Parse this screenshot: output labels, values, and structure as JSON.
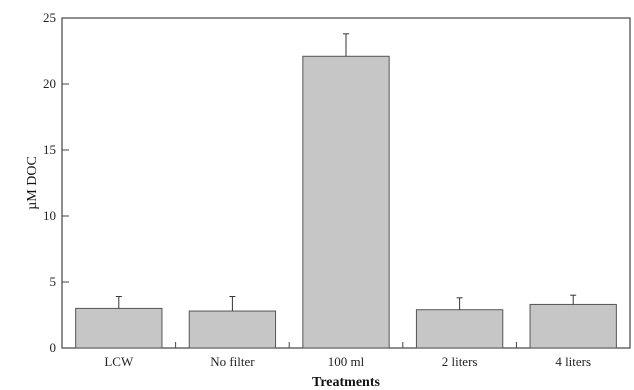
{
  "chart_data": {
    "type": "bar",
    "categories": [
      "LCW",
      "No filter",
      "100 ml",
      "2 liters",
      "4 liters"
    ],
    "values": [
      3.0,
      2.8,
      22.1,
      2.9,
      3.3
    ],
    "error_bars": [
      0.9,
      1.1,
      1.7,
      0.9,
      0.7
    ],
    "title": "",
    "xlabel": "Treatments",
    "ylabel": "µM DOC",
    "ylim": [
      0,
      25
    ],
    "yticks": [
      0,
      5,
      10,
      15,
      20,
      25
    ],
    "ytick_labels": [
      "0",
      "5",
      "10",
      "15",
      "20",
      "25"
    ],
    "grid": false,
    "legend": "none",
    "colors": {
      "bar": "#c6c6c6",
      "bar_edge": "#555555",
      "axis": "#333333"
    }
  }
}
